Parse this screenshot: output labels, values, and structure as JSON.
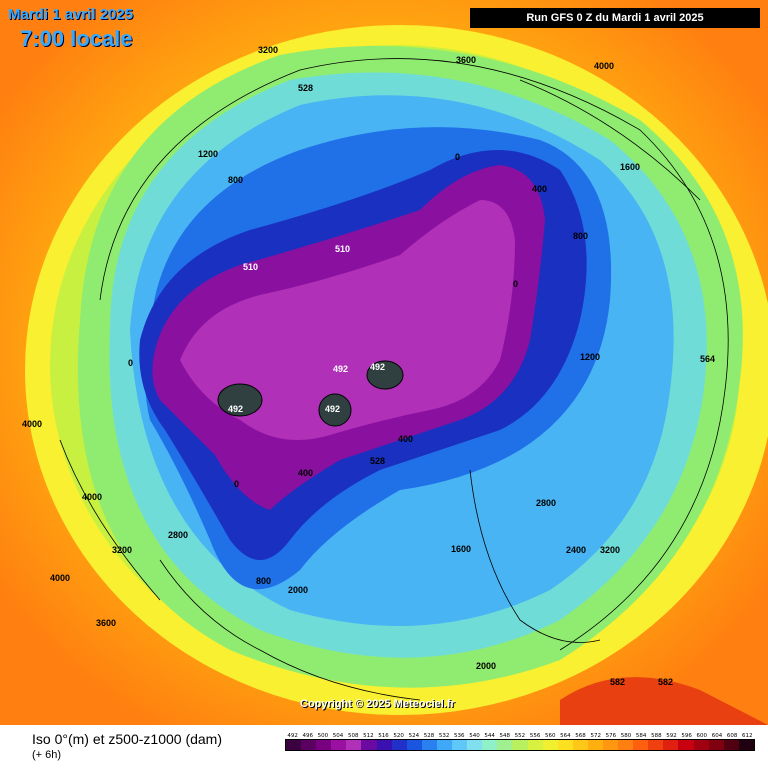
{
  "header": {
    "date": "Mardi 1 avril 2025",
    "time": "7:00 locale",
    "run": "Run GFS 0 Z du Mardi 1 avril 2025"
  },
  "copyright": "Copyright © 2025 Meteociel.fr",
  "footer": {
    "title": "Iso 0°(m) et z500-z1000 (dam)",
    "subtitle": "(+ 6h)"
  },
  "scale": {
    "labels": [
      "492",
      "496",
      "500",
      "504",
      "508",
      "512",
      "516",
      "520",
      "524",
      "528",
      "532",
      "536",
      "540",
      "544",
      "548",
      "552",
      "556",
      "560",
      "564",
      "568",
      "572",
      "576",
      "580",
      "584",
      "588",
      "592",
      "596",
      "600",
      "604",
      "608",
      "612"
    ],
    "colors": [
      "#3a0040",
      "#5a0060",
      "#780080",
      "#9a10a0",
      "#b030b8",
      "#6a0aa0",
      "#3a10b0",
      "#2030c8",
      "#1a55e0",
      "#2a80f0",
      "#40a8f8",
      "#60c8f8",
      "#80e0f0",
      "#90f0c8",
      "#a0f090",
      "#b8f060",
      "#d8f040",
      "#f0f030",
      "#ffe020",
      "#ffc818",
      "#ffb010",
      "#ff9810",
      "#ff8010",
      "#ff6010",
      "#f04010",
      "#e02010",
      "#c80010",
      "#a00010",
      "#800010",
      "#500010",
      "#200010"
    ]
  },
  "map_labels": {
    "thickness_low": "492",
    "thickness_510": "510",
    "thickness_528": "528",
    "thickness_582": "582",
    "thickness_564": "564",
    "iso_0": "0",
    "iso_400": "400",
    "iso_800": "800",
    "iso_1200": "1200",
    "iso_1600": "1600",
    "iso_2000": "2000",
    "iso_2400": "2400",
    "iso_2800": "2800",
    "iso_3200": "3200",
    "iso_3600": "3600",
    "iso_4000": "4000"
  }
}
